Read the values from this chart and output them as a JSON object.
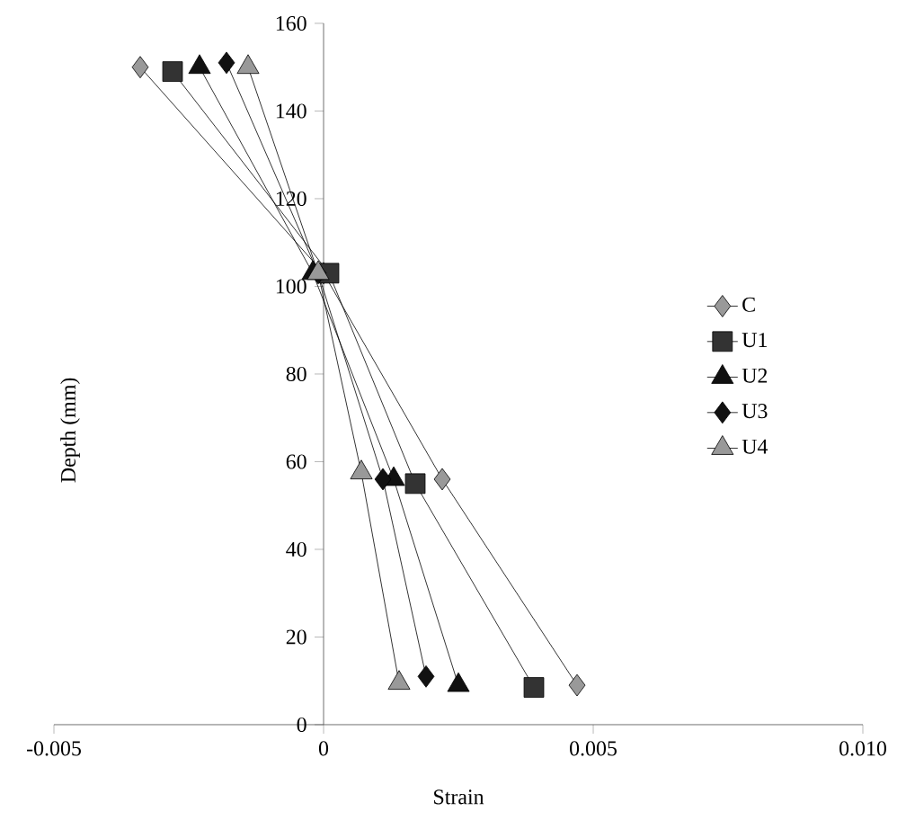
{
  "chart_data": {
    "type": "line",
    "xlabel": "Strain",
    "ylabel": "Depth (mm)",
    "xlim": [
      -0.005,
      0.01
    ],
    "ylim": [
      0,
      160
    ],
    "xticks": [
      -0.005,
      0,
      0.005,
      {
        "value": 0.01,
        "label": "0.010"
      }
    ],
    "yticks": [
      0,
      20,
      40,
      60,
      80,
      100,
      120,
      140,
      160
    ],
    "legend": "right",
    "grid": false,
    "series": [
      {
        "name": "C",
        "color": "#999999",
        "marker": "diamond",
        "x": [
          -0.0034,
          0.0,
          0.0022,
          0.0047
        ],
        "values": [
          150,
          103,
          56,
          9
        ]
      },
      {
        "name": "U1",
        "color": "#333333",
        "marker": "square",
        "x": [
          -0.0028,
          0.0001,
          0.0017,
          0.0039
        ],
        "values": [
          149,
          103,
          55,
          8.5
        ]
      },
      {
        "name": "U2",
        "color": "#111111",
        "marker": "triangle",
        "x": [
          -0.0023,
          -0.0002,
          0.0013,
          0.0025
        ],
        "values": [
          150,
          103,
          56,
          9
        ]
      },
      {
        "name": "U3",
        "color": "#111111",
        "marker": "diamond",
        "x": [
          -0.0018,
          -0.0001,
          0.0011,
          0.0019
        ],
        "values": [
          151,
          103,
          56,
          11
        ]
      },
      {
        "name": "U4",
        "color": "#999999",
        "marker": "triangle",
        "x": [
          -0.0014,
          -0.0001,
          0.0007,
          0.0014
        ],
        "values": [
          150,
          103,
          57.5,
          9.5
        ]
      }
    ]
  }
}
